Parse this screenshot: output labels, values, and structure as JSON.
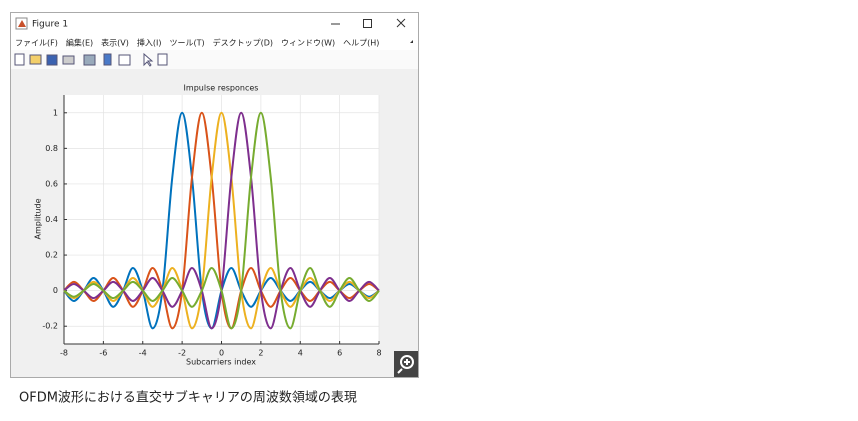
{
  "window": {
    "title": "Figure 1",
    "menu": [
      "ファイル(F)",
      "編集(E)",
      "表示(V)",
      "挿入(I)",
      "ツール(T)",
      "デスクトップ(D)",
      "ウィンドウ(W)",
      "ヘルプ(H)"
    ],
    "caption": "OFDM波形における直交サブキャリアの周波数領域の表現"
  },
  "chart_data": {
    "type": "line",
    "title": "Impulse responces",
    "x_label": "Subcarriers index",
    "y_label": "Amplitude",
    "x": [
      -8,
      -7.5,
      -7,
      -6.5,
      -6,
      -5.5,
      -5,
      -4.5,
      -4,
      -3.5,
      -3,
      -2.5,
      -2,
      -1.5,
      -1,
      -0.5,
      0,
      0.5,
      1,
      1.5,
      2,
      2.5,
      3,
      3.5,
      4,
      4.5,
      5,
      5.5,
      6,
      6.5,
      7,
      7.5,
      8
    ],
    "series": [
      {
        "color": "#0072bd",
        "values": [
          0,
          -0.058,
          0,
          0.071,
          0,
          -0.091,
          0,
          0.127,
          0,
          -0.212,
          0,
          0.637,
          1,
          0.637,
          0,
          -0.212,
          0,
          0.127,
          0,
          -0.091,
          0,
          0.071,
          0,
          -0.058,
          0,
          0.049,
          0,
          -0.042,
          0,
          0.037,
          0,
          -0.034,
          0
        ]
      },
      {
        "color": "#d95319",
        "values": [
          0,
          0.049,
          0,
          -0.058,
          0,
          0.071,
          0,
          -0.091,
          0,
          0.127,
          0,
          -0.212,
          0,
          0.637,
          1,
          0.637,
          0,
          -0.212,
          0,
          0.127,
          0,
          -0.091,
          0,
          0.071,
          0,
          -0.058,
          0,
          0.049,
          0,
          -0.042,
          0,
          0.037,
          0
        ]
      },
      {
        "color": "#edb120",
        "values": [
          0,
          -0.042,
          0,
          0.049,
          0,
          -0.058,
          0,
          0.071,
          0,
          -0.091,
          0,
          0.127,
          0,
          -0.212,
          0,
          0.637,
          1,
          0.637,
          0,
          -0.212,
          0,
          0.127,
          0,
          -0.091,
          0,
          0.071,
          0,
          -0.058,
          0,
          0.049,
          0,
          -0.042,
          0
        ]
      },
      {
        "color": "#7e2f8e",
        "values": [
          0,
          0.037,
          0,
          -0.042,
          0,
          0.049,
          0,
          -0.058,
          0,
          0.071,
          0,
          -0.091,
          0,
          0.127,
          0,
          -0.212,
          0,
          0.637,
          1,
          0.637,
          0,
          -0.212,
          0,
          0.127,
          0,
          -0.091,
          0,
          0.071,
          0,
          -0.058,
          0,
          0.049,
          0
        ]
      },
      {
        "color": "#77ac30",
        "values": [
          0,
          -0.034,
          0,
          0.037,
          0,
          -0.042,
          0,
          0.049,
          0,
          -0.058,
          0,
          0.071,
          0,
          -0.091,
          0,
          0.127,
          0,
          -0.212,
          0,
          0.637,
          1,
          0.637,
          0,
          -0.212,
          0,
          0.127,
          0,
          -0.091,
          0,
          0.071,
          0,
          -0.058,
          0
        ]
      }
    ],
    "xlim": [
      -8,
      8
    ],
    "xticks": [
      -8,
      -6,
      -4,
      -2,
      0,
      2,
      4,
      6,
      8
    ],
    "ylim": [
      -0.3,
      1.1
    ],
    "yticks": [
      -0.2,
      0,
      0.2,
      0.4,
      0.6,
      0.8,
      1
    ],
    "grid": true
  }
}
